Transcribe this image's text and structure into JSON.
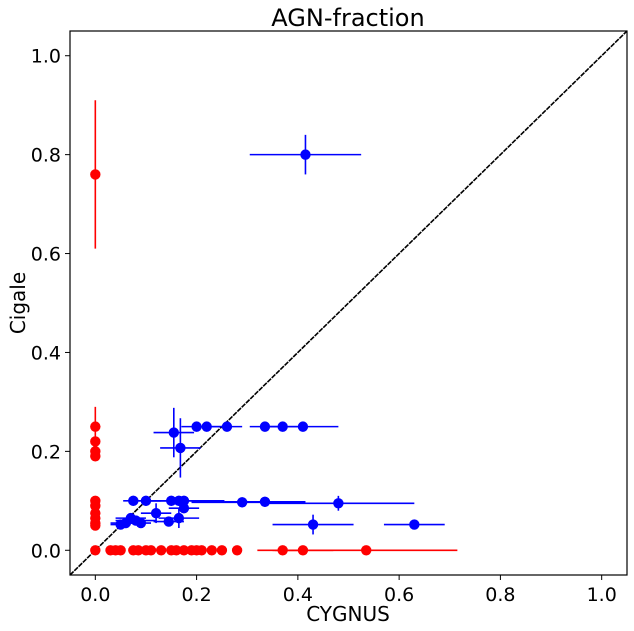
{
  "chart_data": {
    "type": "scatter",
    "title": "AGN-fraction",
    "xlabel": "CYGNUS",
    "ylabel": "Cigale",
    "xlim": [
      -0.05,
      1.05
    ],
    "ylim": [
      -0.05,
      1.05
    ],
    "xticks": [
      "0.0",
      "0.2",
      "0.4",
      "0.6",
      "0.8",
      "1.0"
    ],
    "yticks": [
      "0.0",
      "0.2",
      "0.4",
      "0.6",
      "0.8",
      "1.0"
    ],
    "grid": false,
    "reference_line": {
      "name": "one-to-one",
      "from": [
        -0.05,
        -0.05
      ],
      "to": [
        1.05,
        1.05
      ],
      "color": "#000000"
    },
    "series": [
      {
        "name": "red",
        "color": "#ff0000",
        "points": [
          {
            "x": 0.0,
            "y": 0.76,
            "yerr": 0.15
          },
          {
            "x": 0.0,
            "y": 0.25,
            "yerr": 0.04
          },
          {
            "x": 0.0,
            "y": 0.22
          },
          {
            "x": 0.0,
            "y": 0.2
          },
          {
            "x": 0.0,
            "y": 0.19
          },
          {
            "x": 0.0,
            "y": 0.1
          },
          {
            "x": 0.0,
            "y": 0.09
          },
          {
            "x": 0.0,
            "y": 0.075
          },
          {
            "x": 0.0,
            "y": 0.065
          },
          {
            "x": 0.0,
            "y": 0.055
          },
          {
            "x": 0.0,
            "y": 0.05
          },
          {
            "x": 0.0,
            "y": 0.0
          },
          {
            "x": 0.03,
            "y": 0.0
          },
          {
            "x": 0.04,
            "y": 0.0
          },
          {
            "x": 0.05,
            "y": 0.0
          },
          {
            "x": 0.075,
            "y": 0.0
          },
          {
            "x": 0.085,
            "y": 0.0
          },
          {
            "x": 0.1,
            "y": 0.0
          },
          {
            "x": 0.11,
            "y": 0.0
          },
          {
            "x": 0.13,
            "y": 0.0
          },
          {
            "x": 0.15,
            "y": 0.0
          },
          {
            "x": 0.16,
            "y": 0.0
          },
          {
            "x": 0.175,
            "y": 0.0
          },
          {
            "x": 0.19,
            "y": 0.0
          },
          {
            "x": 0.2,
            "y": 0.0
          },
          {
            "x": 0.21,
            "y": 0.0
          },
          {
            "x": 0.23,
            "y": 0.0
          },
          {
            "x": 0.25,
            "y": 0.0
          },
          {
            "x": 0.28,
            "y": 0.0
          },
          {
            "x": 0.37,
            "y": 0.0,
            "xerr": 0.05
          },
          {
            "x": 0.41,
            "y": 0.0,
            "xerr": 0.06
          },
          {
            "x": 0.535,
            "y": 0.0,
            "xerr": 0.18
          }
        ]
      },
      {
        "name": "blue",
        "color": "#0000ff",
        "points": [
          {
            "x": 0.415,
            "y": 0.8,
            "xerr": 0.11,
            "yerr": 0.04
          },
          {
            "x": 0.155,
            "y": 0.238,
            "xerr": 0.04,
            "yerr": 0.05
          },
          {
            "x": 0.2,
            "y": 0.25,
            "xerr": 0.03,
            "yerr": 0.01
          },
          {
            "x": 0.22,
            "y": 0.25,
            "xerr": 0.03,
            "yerr": 0.01
          },
          {
            "x": 0.26,
            "y": 0.25,
            "xerr": 0.03,
            "yerr": 0.01
          },
          {
            "x": 0.335,
            "y": 0.25,
            "xerr": 0.03,
            "yerr": 0.01
          },
          {
            "x": 0.37,
            "y": 0.25,
            "xerr": 0.04,
            "yerr": 0.01
          },
          {
            "x": 0.41,
            "y": 0.25,
            "xerr": 0.07,
            "yerr": 0.01
          },
          {
            "x": 0.168,
            "y": 0.207,
            "xerr": 0.04,
            "yerr": 0.06
          },
          {
            "x": 0.075,
            "y": 0.1,
            "xerr": 0.02,
            "yerr": 0.01
          },
          {
            "x": 0.1,
            "y": 0.1,
            "xerr": 0.03,
            "yerr": 0.01
          },
          {
            "x": 0.15,
            "y": 0.1,
            "xerr": 0.05,
            "yerr": 0.01
          },
          {
            "x": 0.165,
            "y": 0.1,
            "xerr": 0.06,
            "yerr": 0.01
          },
          {
            "x": 0.175,
            "y": 0.1,
            "xerr": 0.08,
            "yerr": 0.01
          },
          {
            "x": 0.29,
            "y": 0.097,
            "xerr": 0.1,
            "yerr": 0.01
          },
          {
            "x": 0.335,
            "y": 0.098,
            "xerr": 0.08,
            "yerr": 0.01
          },
          {
            "x": 0.48,
            "y": 0.095,
            "xerr": 0.15,
            "yerr": 0.015
          },
          {
            "x": 0.175,
            "y": 0.085,
            "xerr": 0.03,
            "yerr": 0.01
          },
          {
            "x": 0.12,
            "y": 0.075,
            "xerr": 0.03,
            "yerr": 0.02
          },
          {
            "x": 0.07,
            "y": 0.065,
            "xerr": 0.03,
            "yerr": 0.01
          },
          {
            "x": 0.165,
            "y": 0.065,
            "xerr": 0.04,
            "yerr": 0.02
          },
          {
            "x": 0.08,
            "y": 0.06,
            "xerr": 0.04,
            "yerr": 0.01
          },
          {
            "x": 0.06,
            "y": 0.055,
            "xerr": 0.03,
            "yerr": 0.01
          },
          {
            "x": 0.05,
            "y": 0.052,
            "xerr": 0.02,
            "yerr": 0.01
          },
          {
            "x": 0.09,
            "y": 0.055,
            "xerr": 0.02,
            "yerr": 0.01
          },
          {
            "x": 0.145,
            "y": 0.058,
            "xerr": 0.03,
            "yerr": 0.01
          },
          {
            "x": 0.43,
            "y": 0.052,
            "xerr": 0.08,
            "yerr": 0.02
          },
          {
            "x": 0.63,
            "y": 0.052,
            "xerr": 0.06,
            "yerr": 0.01
          }
        ]
      }
    ]
  }
}
